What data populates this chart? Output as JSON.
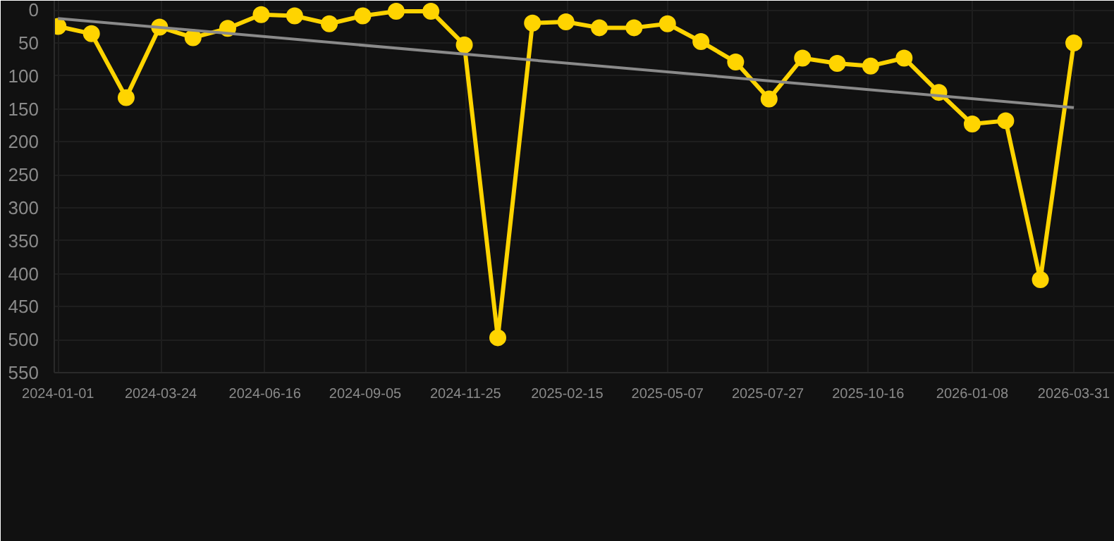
{
  "chart_data": {
    "type": "line",
    "x": [
      "2024-01-01",
      "2024-01-28",
      "2024-02-25",
      "2024-03-23",
      "2024-04-19",
      "2024-05-17",
      "2024-06-13",
      "2024-07-10",
      "2024-08-07",
      "2024-09-03",
      "2024-09-30",
      "2024-10-28",
      "2024-11-24",
      "2024-12-21",
      "2025-01-18",
      "2025-02-14",
      "2025-03-13",
      "2025-04-10",
      "2025-05-07",
      "2025-06-03",
      "2025-07-01",
      "2025-07-28",
      "2025-08-24",
      "2025-09-21",
      "2025-10-18",
      "2025-11-14",
      "2025-12-12",
      "2026-01-08",
      "2026-02-04",
      "2026-03-04",
      "2026-03-31"
    ],
    "series": [
      {
        "color": "#ffd400",
        "marker": "circle",
        "values": [
          25,
          36,
          133,
          26,
          42,
          28,
          7,
          9,
          21,
          9,
          2,
          2,
          53,
          497,
          20,
          18,
          27,
          27,
          21,
          48,
          79,
          135,
          73,
          81,
          85,
          73,
          125,
          173,
          168,
          409,
          50
        ]
      },
      {
        "type": "line",
        "color": "#8a8a8a",
        "marker": "none",
        "x": [
          "2024-01-01",
          "2026-03-31"
        ],
        "values": [
          13,
          148
        ]
      }
    ],
    "xlim": [
      "2023-12-29",
      "2026-05-03"
    ],
    "xticks": [
      "2024-01-01",
      "2024-03-24",
      "2024-06-16",
      "2024-09-05",
      "2024-11-25",
      "2025-02-15",
      "2025-05-07",
      "2025-07-27",
      "2025-10-16",
      "2026-01-08",
      "2026-03-31"
    ],
    "ylim": [
      550,
      -14
    ],
    "yticks": [
      0,
      50,
      100,
      150,
      200,
      250,
      300,
      350,
      400,
      450,
      500,
      550
    ],
    "grid": true
  }
}
